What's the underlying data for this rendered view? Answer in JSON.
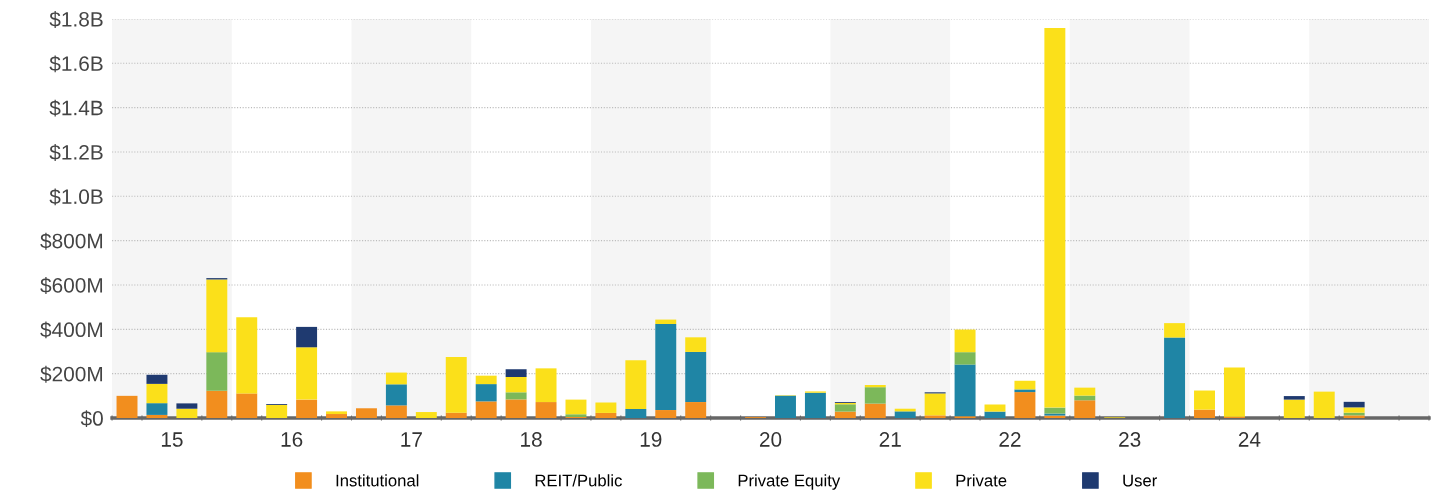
{
  "chart_data": {
    "type": "bar",
    "stacked": true,
    "x": [
      15.125,
      15.375,
      15.625,
      15.875,
      16.125,
      16.375,
      16.625,
      16.875,
      17.125,
      17.375,
      17.625,
      17.875,
      18.125,
      18.375,
      18.625,
      18.875,
      19.125,
      19.375,
      19.625,
      19.875,
      20.125,
      20.375,
      20.625,
      20.875,
      21.125,
      21.375,
      21.625,
      21.875,
      22.125,
      22.375,
      22.625,
      22.875,
      23.125,
      23.375,
      23.625,
      23.875,
      24.125,
      24.375,
      24.625,
      24.875,
      25.125,
      25.375
    ],
    "series": [
      {
        "name": "Institutional",
        "color": "#f28e1e",
        "values": [
          100000000,
          14000000,
          0,
          123000000,
          111000000,
          0,
          83000000,
          18000000,
          44000000,
          57000000,
          0,
          24000000,
          75000000,
          84000000,
          72000000,
          5000000,
          23000000,
          0,
          36000000,
          72000000,
          0,
          4000000,
          0,
          0,
          29000000,
          65000000,
          0,
          12000000,
          8000000,
          0,
          117000000,
          11000000,
          80000000,
          0,
          0,
          0,
          38000000,
          6000000,
          0,
          0,
          0,
          12000000
        ]
      },
      {
        "name": "REIT/Public",
        "color": "#1f85a5",
        "values": [
          0,
          53000000,
          0,
          0,
          0,
          0,
          0,
          0,
          0,
          95000000,
          0,
          0,
          78000000,
          0,
          0,
          0,
          0,
          41000000,
          388000000,
          226000000,
          0,
          0,
          101000000,
          114000000,
          0,
          0,
          30000000,
          0,
          233000000,
          29000000,
          12000000,
          9000000,
          0,
          0,
          0,
          363000000,
          0,
          0,
          0,
          0,
          0,
          0
        ]
      },
      {
        "name": "Private Equity",
        "color": "#7cb85a",
        "values": [
          0,
          0,
          0,
          174000000,
          0,
          0,
          0,
          0,
          0,
          0,
          0,
          0,
          0,
          32000000,
          0,
          12000000,
          0,
          0,
          0,
          0,
          0,
          0,
          0,
          0,
          33000000,
          74000000,
          0,
          0,
          56000000,
          0,
          0,
          27000000,
          21000000,
          0,
          0,
          0,
          0,
          0,
          0,
          0,
          0,
          12000000
        ]
      },
      {
        "name": "Private",
        "color": "#fbe01a",
        "values": [
          0,
          87000000,
          42000000,
          328000000,
          343000000,
          59000000,
          236000000,
          12000000,
          0,
          53000000,
          27000000,
          251000000,
          38000000,
          69000000,
          152000000,
          66000000,
          47000000,
          220000000,
          20000000,
          66000000,
          0,
          0,
          2000000,
          6000000,
          6000000,
          10000000,
          12000000,
          99000000,
          102000000,
          32000000,
          39000000,
          1712000000,
          36000000,
          3000000,
          0,
          65000000,
          86000000,
          222000000,
          0,
          83000000,
          119000000,
          24000000
        ]
      },
      {
        "name": "User",
        "color": "#1f3a70",
        "values": [
          0,
          41000000,
          24000000,
          6000000,
          0,
          4000000,
          92000000,
          0,
          0,
          0,
          0,
          0,
          0,
          35000000,
          0,
          0,
          0,
          0,
          0,
          0,
          0,
          0,
          0,
          0,
          4000000,
          0,
          0,
          5000000,
          0,
          0,
          0,
          0,
          0,
          0,
          0,
          0,
          0,
          0,
          0,
          16000000,
          0,
          25000000
        ]
      }
    ],
    "ylim": [
      0,
      1800000000
    ],
    "yticks": [
      {
        "value": 0,
        "label": "$0"
      },
      {
        "value": 200000000,
        "label": "$200M"
      },
      {
        "value": 400000000,
        "label": "$400M"
      },
      {
        "value": 600000000,
        "label": "$600M"
      },
      {
        "value": 800000000,
        "label": "$800M"
      },
      {
        "value": 1000000000,
        "label": "$1.0B"
      },
      {
        "value": 1200000000,
        "label": "$1.2B"
      },
      {
        "value": 1400000000,
        "label": "$1.4B"
      },
      {
        "value": 1600000000,
        "label": "$1.6B"
      },
      {
        "value": 1800000000,
        "label": "$1.8B"
      }
    ],
    "xlim": [
      15,
      26
    ],
    "xticks": [
      {
        "value": 15,
        "label": null
      },
      {
        "value": 15.25,
        "label": null
      },
      {
        "value": 15.5,
        "label": "15"
      },
      {
        "value": 15.75,
        "label": null
      },
      {
        "value": 16,
        "label": null
      },
      {
        "value": 16.25,
        "label": null
      },
      {
        "value": 16.5,
        "label": "16"
      },
      {
        "value": 16.75,
        "label": null
      },
      {
        "value": 17,
        "label": null
      },
      {
        "value": 17.25,
        "label": null
      },
      {
        "value": 17.5,
        "label": "17"
      },
      {
        "value": 17.75,
        "label": null
      },
      {
        "value": 18,
        "label": null
      },
      {
        "value": 18.25,
        "label": null
      },
      {
        "value": 18.5,
        "label": "18"
      },
      {
        "value": 18.75,
        "label": null
      },
      {
        "value": 19,
        "label": null
      },
      {
        "value": 19.25,
        "label": null
      },
      {
        "value": 19.5,
        "label": "19"
      },
      {
        "value": 19.75,
        "label": null
      },
      {
        "value": 20,
        "label": null
      },
      {
        "value": 20.25,
        "label": null
      },
      {
        "value": 20.5,
        "label": "20"
      },
      {
        "value": 20.75,
        "label": null
      },
      {
        "value": 21,
        "label": null
      },
      {
        "value": 21.25,
        "label": null
      },
      {
        "value": 21.5,
        "label": "21"
      },
      {
        "value": 21.75,
        "label": null
      },
      {
        "value": 22,
        "label": null
      },
      {
        "value": 22.25,
        "label": null
      },
      {
        "value": 22.5,
        "label": "22"
      },
      {
        "value": 22.75,
        "label": null
      },
      {
        "value": 23,
        "label": null
      },
      {
        "value": 23.25,
        "label": null
      },
      {
        "value": 23.5,
        "label": "23"
      },
      {
        "value": 23.75,
        "label": null
      },
      {
        "value": 24,
        "label": null
      },
      {
        "value": 24.25,
        "label": null
      },
      {
        "value": 24.5,
        "label": "24"
      },
      {
        "value": 24.75,
        "label": null
      },
      {
        "value": 25,
        "label": null
      },
      {
        "value": 25.25,
        "label": null
      },
      {
        "value": 25.75,
        "label": null
      },
      {
        "value": 26,
        "label": null
      }
    ],
    "bands": [
      {
        "axis": "x",
        "from": 15,
        "to": 16,
        "color": "#f5f5f5"
      },
      {
        "axis": "x",
        "from": 17,
        "to": 18,
        "color": "#f5f5f5"
      },
      {
        "axis": "x",
        "from": 19,
        "to": 20,
        "color": "#f5f5f5"
      },
      {
        "axis": "x",
        "from": 21,
        "to": 22,
        "color": "#f5f5f5"
      },
      {
        "axis": "x",
        "from": 23,
        "to": 24,
        "color": "#f5f5f5"
      },
      {
        "axis": "x",
        "from": 25,
        "to": 26,
        "color": "#f5f5f5"
      }
    ],
    "grid": "y",
    "legend": "bottom",
    "marker": "square"
  }
}
